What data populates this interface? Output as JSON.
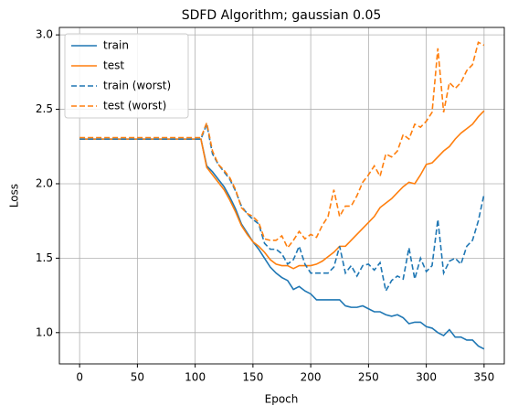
{
  "chart_data": {
    "type": "line",
    "title": "SDFD Algorithm; gaussian 0.05",
    "xlabel": "Epoch",
    "ylabel": "Loss",
    "x": [
      0,
      5,
      10,
      15,
      20,
      25,
      30,
      35,
      40,
      45,
      50,
      55,
      60,
      65,
      70,
      75,
      80,
      85,
      90,
      95,
      100,
      105,
      110,
      115,
      120,
      125,
      130,
      135,
      140,
      145,
      150,
      155,
      160,
      165,
      170,
      175,
      180,
      185,
      190,
      195,
      200,
      205,
      210,
      215,
      220,
      225,
      230,
      235,
      240,
      245,
      250,
      255,
      260,
      265,
      270,
      275,
      280,
      285,
      290,
      295,
      300,
      305,
      310,
      315,
      320,
      325,
      330,
      335,
      340,
      345,
      350
    ],
    "series": [
      {
        "name": "train",
        "color": "#1f77b4",
        "style": "solid",
        "values": [
          2.3,
          2.3,
          2.3,
          2.3,
          2.3,
          2.3,
          2.3,
          2.3,
          2.3,
          2.3,
          2.3,
          2.3,
          2.3,
          2.3,
          2.3,
          2.3,
          2.3,
          2.3,
          2.3,
          2.3,
          2.3,
          2.3,
          2.12,
          2.08,
          2.03,
          1.98,
          1.91,
          1.83,
          1.73,
          1.67,
          1.61,
          1.56,
          1.5,
          1.44,
          1.4,
          1.37,
          1.35,
          1.29,
          1.31,
          1.28,
          1.26,
          1.22,
          1.22,
          1.22,
          1.22,
          1.22,
          1.18,
          1.17,
          1.17,
          1.18,
          1.16,
          1.14,
          1.14,
          1.12,
          1.11,
          1.12,
          1.1,
          1.06,
          1.07,
          1.07,
          1.04,
          1.03,
          1.0,
          0.98,
          1.02,
          0.97,
          0.97,
          0.95,
          0.95,
          0.91,
          0.89
        ]
      },
      {
        "name": "test",
        "color": "#ff7f0e",
        "style": "solid",
        "values": [
          2.3,
          2.3,
          2.3,
          2.3,
          2.3,
          2.3,
          2.3,
          2.3,
          2.3,
          2.3,
          2.3,
          2.3,
          2.3,
          2.3,
          2.3,
          2.3,
          2.3,
          2.3,
          2.3,
          2.3,
          2.3,
          2.3,
          2.11,
          2.06,
          2.01,
          1.96,
          1.89,
          1.81,
          1.72,
          1.66,
          1.61,
          1.58,
          1.54,
          1.49,
          1.46,
          1.45,
          1.45,
          1.43,
          1.45,
          1.45,
          1.45,
          1.46,
          1.48,
          1.51,
          1.54,
          1.58,
          1.58,
          1.62,
          1.66,
          1.7,
          1.74,
          1.78,
          1.84,
          1.87,
          1.9,
          1.94,
          1.98,
          2.01,
          2.0,
          2.06,
          2.13,
          2.14,
          2.18,
          2.22,
          2.25,
          2.3,
          2.34,
          2.37,
          2.4,
          2.45,
          2.49
        ]
      },
      {
        "name": "train (worst)",
        "color": "#1f77b4",
        "style": "dashed",
        "values": [
          2.3,
          2.3,
          2.3,
          2.3,
          2.3,
          2.3,
          2.3,
          2.3,
          2.3,
          2.3,
          2.3,
          2.3,
          2.3,
          2.3,
          2.3,
          2.3,
          2.3,
          2.3,
          2.3,
          2.3,
          2.3,
          2.3,
          2.4,
          2.2,
          2.13,
          2.08,
          2.03,
          1.95,
          1.85,
          1.8,
          1.76,
          1.73,
          1.6,
          1.56,
          1.56,
          1.53,
          1.46,
          1.49,
          1.58,
          1.46,
          1.4,
          1.4,
          1.4,
          1.4,
          1.44,
          1.58,
          1.4,
          1.45,
          1.38,
          1.45,
          1.46,
          1.42,
          1.47,
          1.28,
          1.35,
          1.38,
          1.36,
          1.57,
          1.36,
          1.5,
          1.41,
          1.45,
          1.76,
          1.4,
          1.48,
          1.5,
          1.46,
          1.58,
          1.62,
          1.75,
          1.93
        ]
      },
      {
        "name": "test (worst)",
        "color": "#ff7f0e",
        "style": "dashed",
        "values": [
          2.31,
          2.31,
          2.31,
          2.31,
          2.31,
          2.31,
          2.31,
          2.31,
          2.31,
          2.31,
          2.31,
          2.31,
          2.31,
          2.31,
          2.31,
          2.31,
          2.31,
          2.31,
          2.31,
          2.31,
          2.31,
          2.31,
          2.41,
          2.22,
          2.13,
          2.09,
          2.04,
          1.96,
          1.84,
          1.8,
          1.78,
          1.74,
          1.63,
          1.62,
          1.62,
          1.65,
          1.57,
          1.62,
          1.68,
          1.63,
          1.66,
          1.64,
          1.72,
          1.78,
          1.96,
          1.78,
          1.85,
          1.85,
          1.92,
          2.01,
          2.06,
          2.12,
          2.05,
          2.2,
          2.18,
          2.22,
          2.33,
          2.3,
          2.4,
          2.38,
          2.42,
          2.48,
          2.91,
          2.48,
          2.68,
          2.64,
          2.68,
          2.76,
          2.8,
          2.95,
          2.93
        ]
      }
    ],
    "xlim": [
      -17.5,
      367.5
    ],
    "xticks": [
      0,
      50,
      100,
      150,
      200,
      250,
      300,
      350
    ],
    "ylim": [
      0.79,
      3.05
    ],
    "yticks": [
      {
        "value": 1,
        "label": "1.0"
      },
      1.5,
      {
        "value": 2,
        "label": "2.0"
      },
      2.5,
      {
        "value": 3,
        "label": "3.0"
      }
    ],
    "grid": true,
    "legend": "upper left"
  }
}
